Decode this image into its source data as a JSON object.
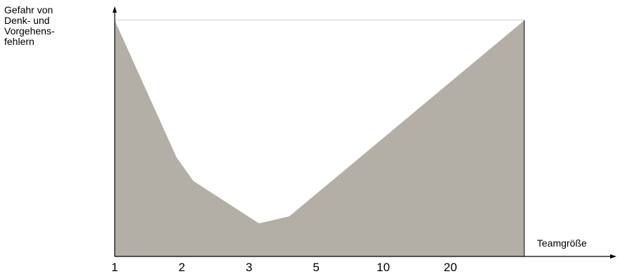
{
  "chart_data": {
    "type": "area",
    "title": "",
    "ylabel_lines": [
      "Gefahr von",
      "Denk- und",
      "Vorgehens-",
      "fehlern"
    ],
    "xlabel": "Teamgröße",
    "x_tick_labels": [
      "1",
      "2",
      "3",
      "5",
      "10",
      "20"
    ],
    "x_tick_positions": [
      1,
      2,
      3,
      4,
      5,
      6
    ],
    "xlim": [
      1,
      7.1
    ],
    "ylim": [
      0,
      1
    ],
    "y_ticks_labeled": false,
    "grid": false,
    "legend": "none",
    "series": [
      {
        "x": [
          1,
          1.92,
          2.17,
          3.15,
          3.6,
          7.1
        ],
        "y": [
          1.0,
          0.42,
          0.32,
          0.14,
          0.17,
          1.0
        ]
      }
    ],
    "fill_color": "#b4afa6",
    "top_line_color": "#cfcfcf",
    "axis_color": "#000000"
  }
}
